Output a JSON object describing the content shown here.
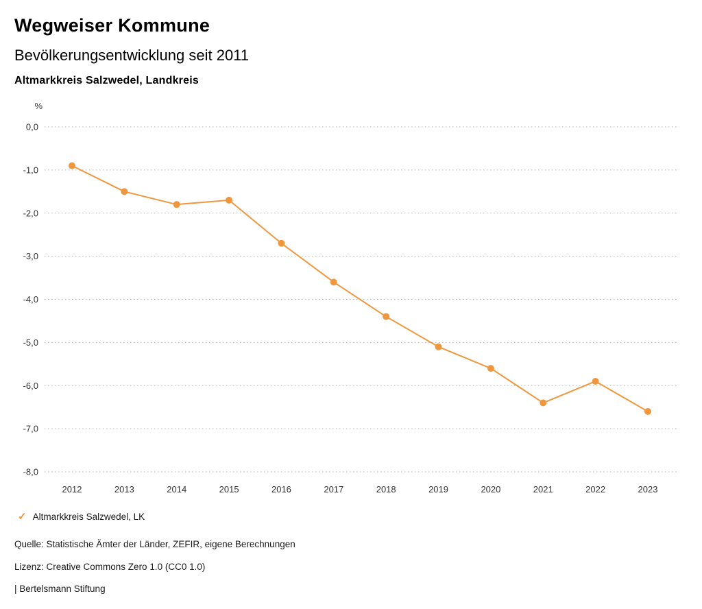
{
  "header": {
    "title": "Wegweiser Kommune",
    "subtitle": "Bevölkerungsentwicklung seit 2011",
    "region": "Altmarkkreis Salzwedel, Landkreis"
  },
  "chart_data": {
    "type": "line",
    "title": "Bevölkerungsentwicklung seit 2011",
    "unit_label": "%",
    "x": [
      "2012",
      "2013",
      "2014",
      "2015",
      "2016",
      "2017",
      "2018",
      "2019",
      "2020",
      "2021",
      "2022",
      "2023"
    ],
    "series": [
      {
        "name": "Altmarkkreis Salzwedel, LK",
        "color": "#F0973E",
        "values": [
          -0.9,
          -1.5,
          -1.8,
          -1.7,
          -2.7,
          -3.6,
          -4.4,
          -5.1,
          -5.6,
          -6.4,
          -5.9,
          -6.6
        ]
      }
    ],
    "ylim": [
      -8.0,
      0.0
    ],
    "y_ticks": [
      0,
      -1,
      -2,
      -3,
      -4,
      -5,
      -6,
      -7,
      -8
    ],
    "y_tick_labels": [
      "0,0",
      "-1,0",
      "-2,0",
      "-3,0",
      "-4,0",
      "-5,0",
      "-6,0",
      "-7,0",
      "-8,0"
    ],
    "grid": true,
    "grid_color": "#b3b3b3",
    "tick_label_color": "#333333",
    "legend_position": "bottom"
  },
  "legend": {
    "check_icon": "✓",
    "items": [
      {
        "label": "Altmarkkreis Salzwedel, LK",
        "color": "#F0973E"
      }
    ]
  },
  "footer": {
    "source": "Quelle: Statistische Ämter der Länder, ZEFIR, eigene Berechnungen",
    "license": "Lizenz: Creative Commons Zero 1.0 (CC0 1.0)",
    "attribution": "| Bertelsmann Stiftung"
  }
}
